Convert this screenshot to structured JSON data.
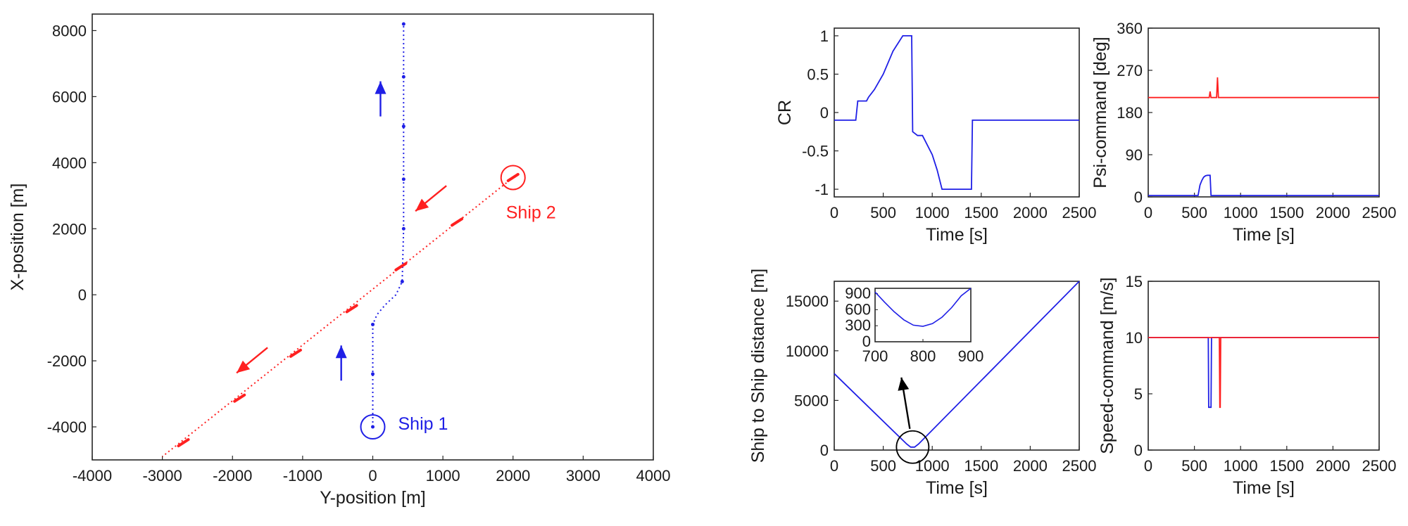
{
  "chart_data": [
    {
      "type": "line",
      "id": "trajectory",
      "title": "",
      "xlabel": "Y-position [m]",
      "ylabel": "X-position [m]",
      "xlim": [
        -4000,
        4000
      ],
      "ylim": [
        -5000,
        8500
      ],
      "xticks": [
        "-4000",
        "-3000",
        "-2000",
        "-1000",
        "0",
        "1000",
        "2000",
        "3000",
        "4000"
      ],
      "yticks": [
        "-4000",
        "-2000",
        "0",
        "2000",
        "4000",
        "6000",
        "8000"
      ],
      "grid": false,
      "colors": {
        "ship1": "#1f1fe6",
        "ship2": "#ff2020"
      },
      "series": [
        {
          "name": "Ship 1",
          "color": "#1f1fe6",
          "style": "dotted",
          "start": [
            0,
            -4000
          ],
          "x": [
            0,
            0,
            0,
            0,
            60,
            180,
            330,
            420,
            440,
            440,
            440,
            440
          ],
          "y": [
            -4000,
            -2000,
            -1500,
            -900,
            -600,
            -300,
            0,
            400,
            2000,
            4000,
            6000,
            8200
          ],
          "markers_x": [
            0,
            0,
            0,
            420,
            440,
            440,
            440,
            440,
            440
          ],
          "markers_y": [
            -4000,
            -2400,
            -900,
            400,
            2000,
            3500,
            5100,
            6600,
            8200
          ],
          "arrows": [
            {
              "x": -450,
              "y": -2600,
              "dir": "north"
            },
            {
              "x": 110,
              "y": 5400,
              "dir": "north"
            }
          ],
          "label": "Ship 1"
        },
        {
          "name": "Ship 2",
          "color": "#ff2020",
          "style": "dotted",
          "start": [
            2000,
            3550
          ],
          "x": [
            2000,
            -3000
          ],
          "y": [
            3550,
            -4900
          ],
          "markers_x": [
            2000,
            1200,
            400,
            -300,
            -1100,
            -1900,
            -2700
          ],
          "markers_y": [
            3550,
            2200,
            850,
            -420,
            -1770,
            -3130,
            -4480
          ],
          "arrows": [
            {
              "x": 1050,
              "y": 3300,
              "dir": "southwest"
            },
            {
              "x": -1500,
              "y": -1600,
              "dir": "southwest"
            }
          ],
          "label": "Ship 2"
        }
      ]
    },
    {
      "type": "line",
      "id": "cr",
      "xlabel": "Time [s]",
      "ylabel": "CR",
      "xlim": [
        0,
        2500
      ],
      "ylim": [
        -1.1,
        1.1
      ],
      "xticks": [
        "0",
        "500",
        "1000",
        "1500",
        "2000",
        "2500"
      ],
      "yticks": [
        "-1",
        "-0.5",
        "0",
        "0.5",
        "1"
      ],
      "series": [
        {
          "color": "#1f1fe6",
          "x": [
            0,
            30,
            220,
            240,
            330,
            350,
            410,
            500,
            600,
            700,
            790,
            800,
            850,
            900,
            1000,
            1050,
            1100,
            1150,
            1200,
            1400,
            1410,
            2500
          ],
          "y": [
            -0.1,
            -0.1,
            -0.1,
            0.15,
            0.15,
            0.2,
            0.3,
            0.5,
            0.8,
            1.0,
            1.0,
            -0.25,
            -0.3,
            -0.3,
            -0.55,
            -0.75,
            -1.0,
            -1.0,
            -1.0,
            -1.0,
            -0.1,
            -0.1
          ]
        }
      ]
    },
    {
      "type": "line",
      "id": "psi",
      "xlabel": "Time [s]",
      "ylabel": "Psi-command [deg]",
      "xlim": [
        0,
        2500
      ],
      "ylim": [
        0,
        360
      ],
      "xticks": [
        "0",
        "500",
        "1000",
        "1500",
        "2000",
        "2500"
      ],
      "yticks": [
        "0",
        "90",
        "180",
        "270",
        "360"
      ],
      "series": [
        {
          "color": "#ff2020",
          "x": [
            0,
            660,
            670,
            680,
            700,
            740,
            750,
            760,
            780,
            2500
          ],
          "y": [
            212,
            212,
            225,
            212,
            212,
            212,
            255,
            212,
            212,
            212
          ]
        },
        {
          "color": "#1f1fe6",
          "x": [
            0,
            540,
            560,
            580,
            600,
            620,
            640,
            650,
            670,
            680,
            2500
          ],
          "y": [
            3,
            3,
            25,
            35,
            42,
            45,
            46,
            46,
            46,
            3,
            3
          ]
        }
      ]
    },
    {
      "type": "line",
      "id": "distance",
      "xlabel": "Time [s]",
      "ylabel": "Ship to Ship distance [m]",
      "xlim": [
        0,
        2500
      ],
      "ylim": [
        0,
        17000
      ],
      "xticks": [
        "0",
        "500",
        "1000",
        "1500",
        "2000",
        "2500"
      ],
      "yticks": [
        "0",
        "5000",
        "10000",
        "15000"
      ],
      "series": [
        {
          "color": "#1f1fe6",
          "x": [
            0,
            740,
            780,
            820,
            860,
            2500
          ],
          "y": [
            7700,
            600,
            300,
            300,
            600,
            17000
          ]
        }
      ],
      "inset": {
        "xlim": [
          700,
          900
        ],
        "ylim": [
          0,
          1000
        ],
        "xticks": [
          "700",
          "800",
          "900"
        ],
        "yticks": [
          "0",
          "300",
          "600",
          "900"
        ],
        "x": [
          700,
          720,
          740,
          760,
          780,
          800,
          820,
          840,
          860,
          880,
          900
        ],
        "y": [
          930,
          740,
          560,
          410,
          310,
          290,
          340,
          460,
          640,
          860,
          1000
        ]
      }
    },
    {
      "type": "line",
      "id": "speed",
      "xlabel": "Time [s]",
      "ylabel": "Speed-command [m/s]",
      "xlim": [
        0,
        2500
      ],
      "ylim": [
        0,
        15
      ],
      "xticks": [
        "0",
        "500",
        "1000",
        "1500",
        "2000",
        "2500"
      ],
      "yticks": [
        "0",
        "5",
        "10",
        "15"
      ],
      "series": [
        {
          "color": "#1f1fe6",
          "x": [
            0,
            650,
            655,
            680,
            685,
            2500
          ],
          "y": [
            10,
            10,
            3.8,
            3.8,
            10,
            10
          ]
        },
        {
          "color": "#ff2020",
          "x": [
            0,
            770,
            775,
            780,
            785,
            2500
          ],
          "y": [
            10,
            10,
            3.8,
            3.8,
            10,
            10
          ]
        }
      ]
    }
  ]
}
